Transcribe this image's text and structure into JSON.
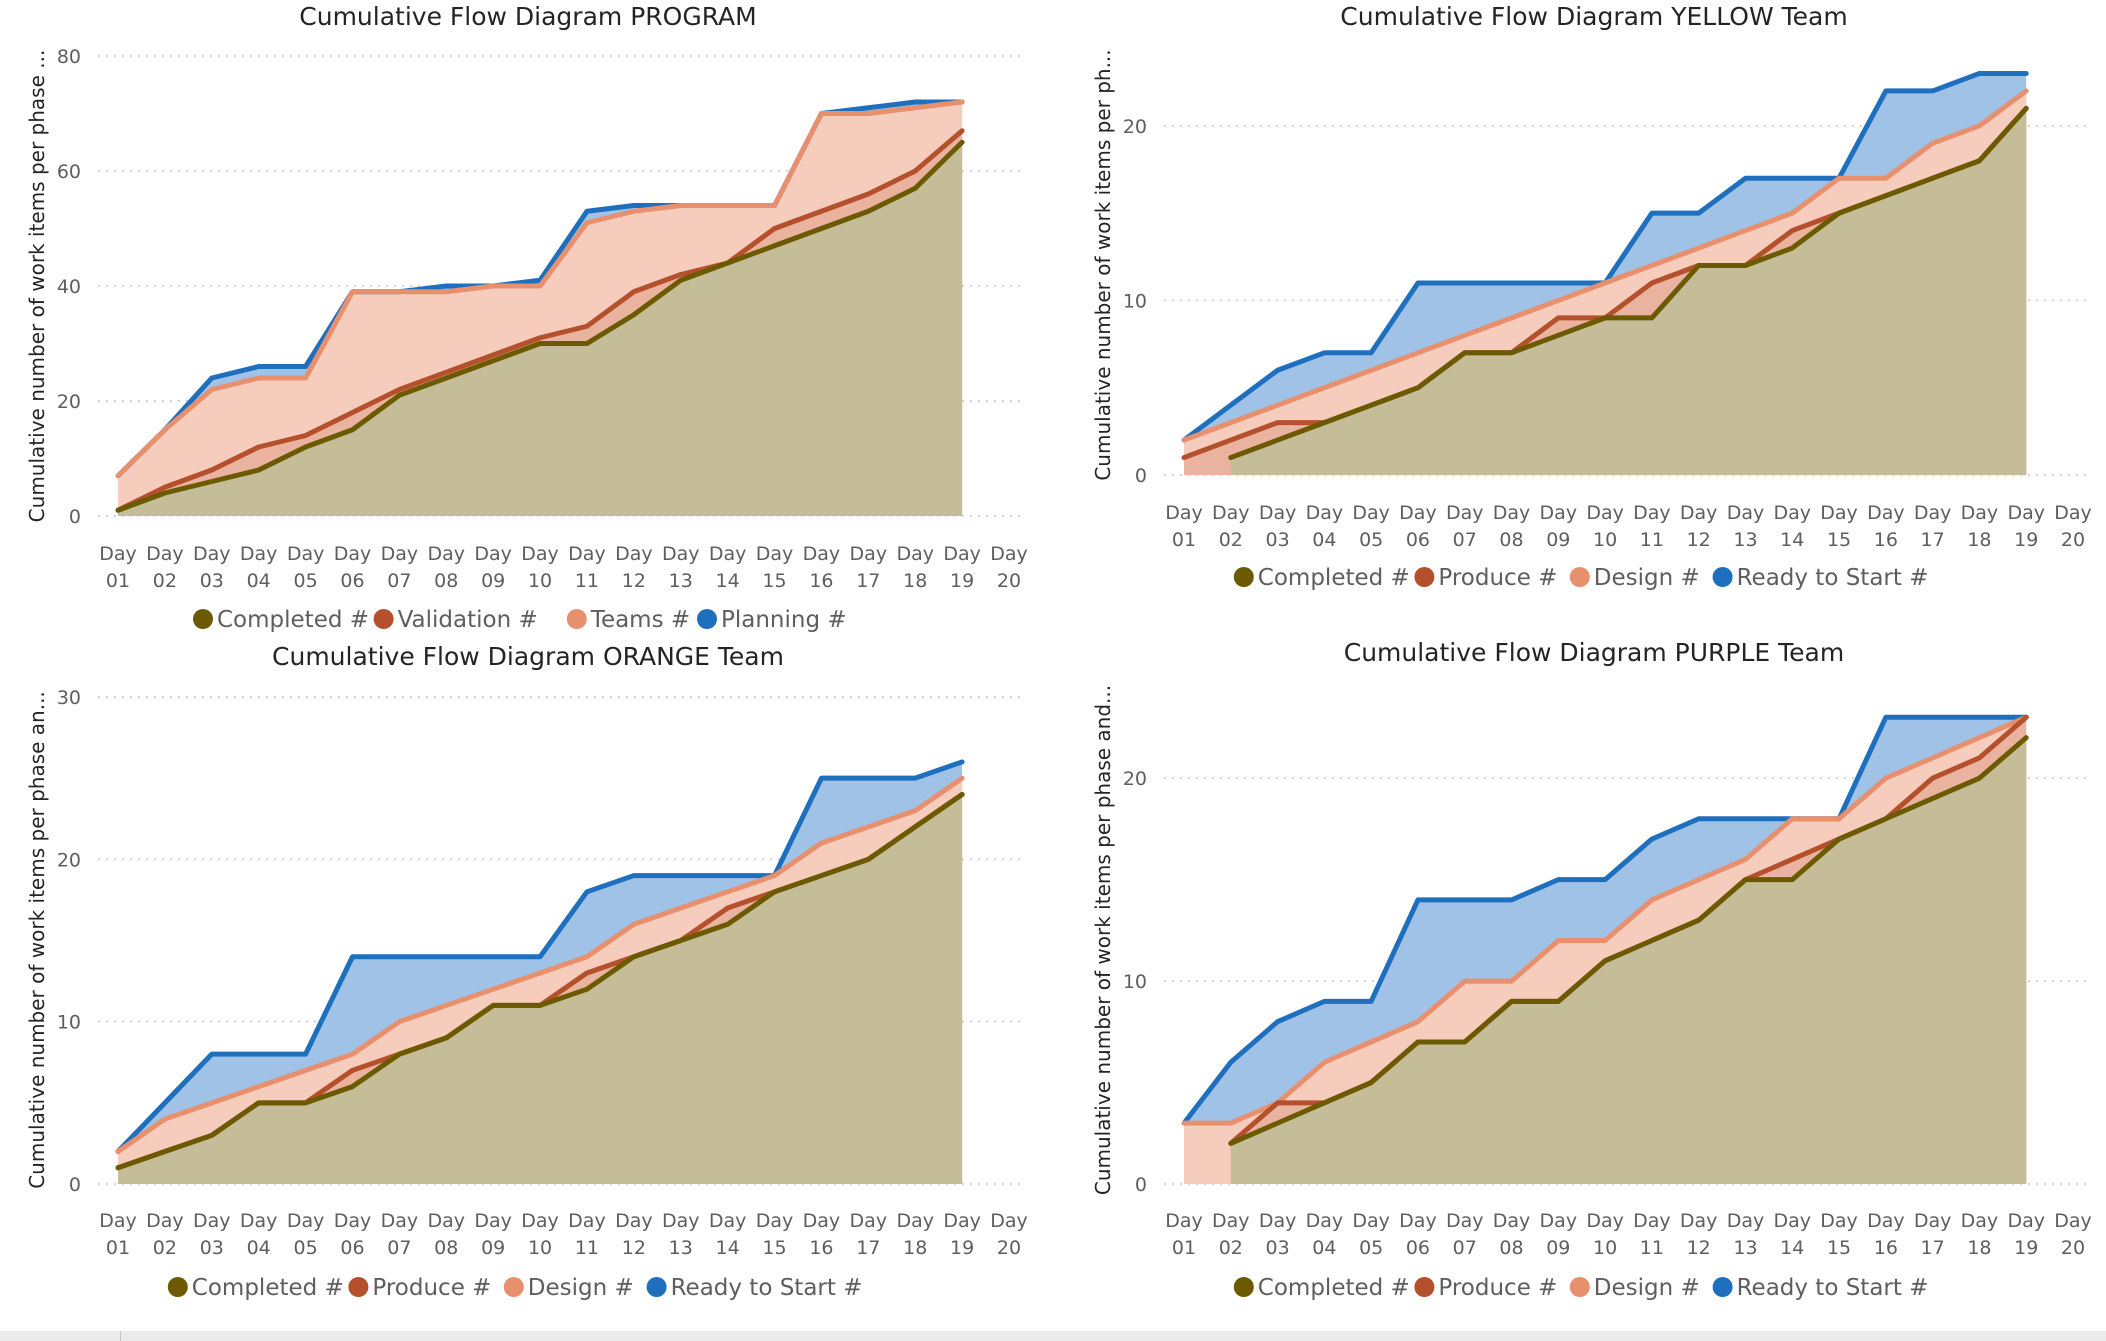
{
  "colors": {
    "completed_line": "#6b5a00",
    "completed_fill": "#c5bd98",
    "middle_line": "#b4502c",
    "middle_fill": "#e9b3a0",
    "light_line": "#e8906e",
    "light_fill": "#f6cdbd",
    "blue_line": "#1f6fbf",
    "blue_fill": "#a0c2e6"
  },
  "days": [
    "01",
    "02",
    "03",
    "04",
    "05",
    "06",
    "07",
    "08",
    "09",
    "10",
    "11",
    "12",
    "13",
    "14",
    "15",
    "16",
    "17",
    "18",
    "19",
    "20"
  ],
  "day_prefix": "Day",
  "chart_data": [
    {
      "type": "area",
      "title": "Cumulative Flow Diagram PROGRAM",
      "ylabel": "Cumulative number of work items per phase ...",
      "ylim": [
        0,
        80
      ],
      "yticks": [
        0,
        20,
        40,
        60,
        80
      ],
      "grid": true,
      "legend_position": "bottom",
      "series": [
        {
          "name": "Completed #",
          "values": [
            1,
            4,
            6,
            8,
            12,
            15,
            21,
            24,
            27,
            30,
            30,
            35,
            41,
            44,
            47,
            50,
            53,
            57,
            65,
            null
          ]
        },
        {
          "name": "Validation #",
          "values": [
            1,
            5,
            8,
            12,
            14,
            18,
            22,
            25,
            28,
            31,
            33,
            39,
            42,
            44,
            50,
            53,
            56,
            60,
            67,
            null
          ]
        },
        {
          "name": "Teams #",
          "values": [
            7,
            15,
            22,
            24,
            24,
            39,
            39,
            39,
            40,
            40,
            51,
            53,
            54,
            54,
            54,
            70,
            70,
            71,
            72,
            null
          ]
        },
        {
          "name": "Planning #",
          "values": [
            7,
            15,
            24,
            26,
            26,
            39,
            39,
            40,
            40,
            41,
            53,
            54,
            54,
            54,
            54,
            70,
            71,
            72,
            72,
            null
          ]
        }
      ]
    },
    {
      "type": "area",
      "title": "Cumulative Flow Diagram YELLOW Team",
      "ylabel": "Cumulative number of work items per ph...",
      "ylim": [
        0,
        24
      ],
      "yticks": [
        0,
        10,
        20
      ],
      "grid": true,
      "legend_position": "bottom",
      "series": [
        {
          "name": "Completed #",
          "values": [
            null,
            1,
            2,
            3,
            4,
            5,
            7,
            7,
            8,
            9,
            9,
            12,
            12,
            13,
            15,
            16,
            17,
            18,
            21
          ]
        },
        {
          "name": "Produce #",
          "values": [
            1,
            2,
            3,
            3,
            4,
            5,
            7,
            7,
            9,
            9,
            11,
            12,
            12,
            14,
            15,
            16,
            17,
            18,
            21
          ]
        },
        {
          "name": "Design #",
          "values": [
            2,
            3,
            4,
            5,
            6,
            7,
            8,
            9,
            10,
            11,
            12,
            13,
            14,
            15,
            17,
            17,
            19,
            20,
            22
          ]
        },
        {
          "name": "Ready to Start #",
          "values": [
            2,
            4,
            6,
            7,
            7,
            11,
            11,
            11,
            11,
            11,
            15,
            15,
            17,
            17,
            17,
            22,
            22,
            23,
            23
          ]
        }
      ]
    },
    {
      "type": "area",
      "title": "Cumulative Flow Diagram ORANGE Team",
      "ylabel": "Cumulative number of work items per phase an...",
      "ylim": [
        0,
        30
      ],
      "yticks": [
        0,
        10,
        20,
        30
      ],
      "grid": true,
      "legend_position": "bottom",
      "series": [
        {
          "name": "Completed #",
          "values": [
            1,
            2,
            3,
            5,
            5,
            6,
            8,
            9,
            11,
            11,
            12,
            14,
            15,
            16,
            18,
            19,
            20,
            22,
            24,
            null
          ]
        },
        {
          "name": "Produce #",
          "values": [
            1,
            2,
            3,
            5,
            5,
            7,
            8,
            9,
            11,
            11,
            13,
            14,
            15,
            17,
            18,
            19,
            20,
            22,
            24,
            null
          ]
        },
        {
          "name": "Design #",
          "values": [
            2,
            4,
            5,
            6,
            7,
            8,
            10,
            11,
            12,
            13,
            14,
            16,
            17,
            18,
            19,
            21,
            22,
            23,
            25,
            null
          ]
        },
        {
          "name": "Ready to Start #",
          "values": [
            2,
            5,
            8,
            8,
            8,
            14,
            14,
            14,
            14,
            14,
            18,
            19,
            19,
            19,
            19,
            25,
            25,
            25,
            26,
            null
          ]
        }
      ]
    },
    {
      "type": "area",
      "title": "Cumulative Flow Diagram PURPLE Team",
      "ylabel": "Cumulative number of work items per phase and...",
      "ylim": [
        0,
        24
      ],
      "yticks": [
        0,
        10,
        20
      ],
      "grid": true,
      "legend_position": "bottom",
      "series": [
        {
          "name": "Completed #",
          "values": [
            null,
            2,
            3,
            4,
            5,
            7,
            7,
            9,
            9,
            11,
            12,
            13,
            15,
            15,
            17,
            18,
            19,
            20,
            22
          ]
        },
        {
          "name": "Produce #",
          "values": [
            null,
            2,
            4,
            4,
            5,
            7,
            7,
            9,
            9,
            11,
            12,
            13,
            15,
            16,
            17,
            18,
            20,
            21,
            23
          ]
        },
        {
          "name": "Design #",
          "values": [
            3,
            3,
            4,
            6,
            7,
            8,
            10,
            10,
            12,
            12,
            14,
            15,
            16,
            18,
            18,
            20,
            21,
            22,
            23
          ]
        },
        {
          "name": "Ready to Start #",
          "values": [
            3,
            6,
            8,
            9,
            9,
            14,
            14,
            14,
            15,
            15,
            17,
            18,
            18,
            18,
            18,
            23,
            23,
            23,
            23
          ]
        }
      ]
    }
  ]
}
